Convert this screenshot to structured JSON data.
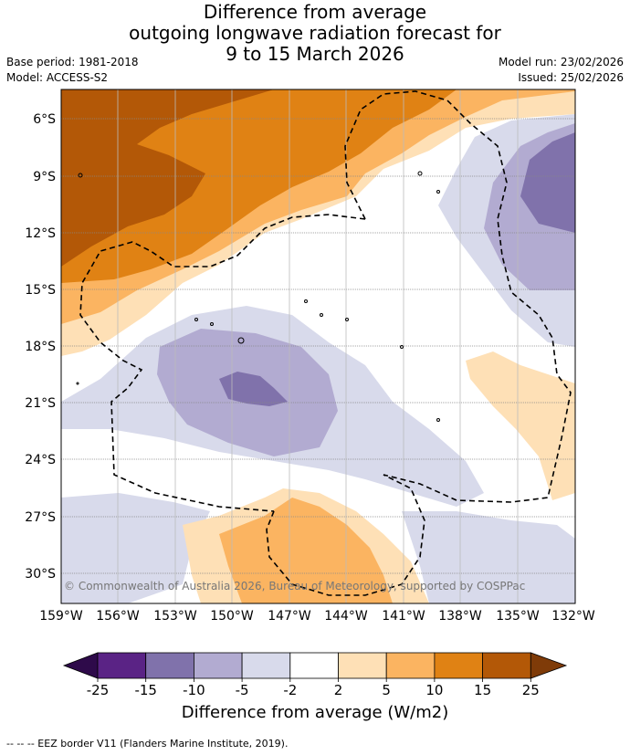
{
  "header": {
    "title_line1": "Difference from average",
    "title_line2": "outgoing longwave radiation forecast for",
    "title_line3": "9 to 15 March 2026",
    "base_period": "Base period: 1981-2018",
    "model": "Model: ACCESS-S2",
    "model_run": "Model run: 23/02/2026",
    "issued": "Issued: 25/02/2026"
  },
  "map": {
    "lat_labels": [
      "6°S",
      "9°S",
      "12°S",
      "15°S",
      "18°S",
      "21°S",
      "24°S",
      "27°S",
      "30°S"
    ],
    "lon_labels": [
      "159°W",
      "156°W",
      "153°W",
      "150°W",
      "147°W",
      "144°W",
      "141°W",
      "138°W",
      "135°W",
      "132°W"
    ],
    "copyright": "© Commonwealth of Australia 2026, Bureau of Meteorology, supported by COSPPac"
  },
  "colorbar": {
    "ticks": [
      "-25",
      "-15",
      "-10",
      "-5",
      "-2",
      "2",
      "5",
      "10",
      "15",
      "25"
    ],
    "colors": {
      "low_ext": "#2e0a4a",
      "c1": "#5a2385",
      "c2": "#8072ab",
      "c3": "#b2abd1",
      "c4": "#d8daeb",
      "c5": "#ffffff",
      "c6": "#fee0b6",
      "c7": "#fbb461",
      "c8": "#e08214",
      "c9": "#b35807",
      "high_ext": "#7f3b08"
    },
    "title": "Difference from average (W/m2)"
  },
  "footer": {
    "legend": "--  --  -- EEZ border V11 (Flanders Marine Institute, 2019)."
  }
}
